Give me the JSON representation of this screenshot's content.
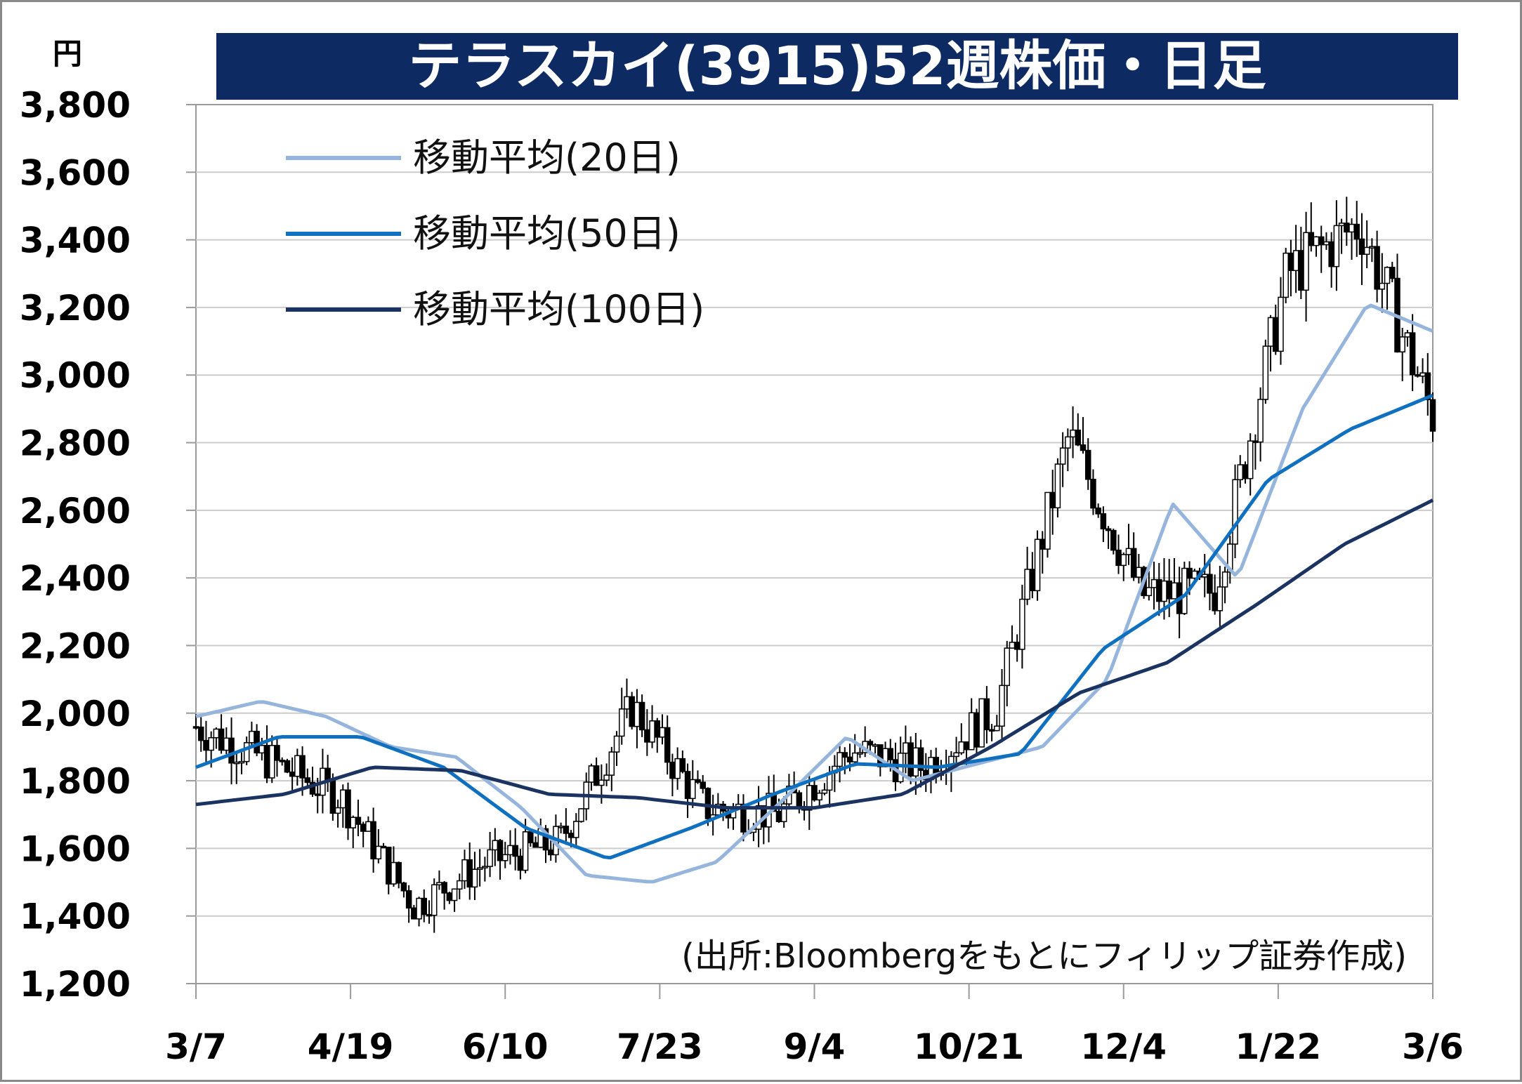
{
  "chart_data": {
    "type": "candlestick",
    "title": "テラスカイ(3915)52週株価・日足",
    "unit": "円",
    "source": "(出所:Bloombergをもとにフィリップ証券作成)",
    "ylim": [
      1200,
      3800
    ],
    "y_ticks": [
      "1,200",
      "1,400",
      "1,600",
      "1,800",
      "2,000",
      "2,200",
      "2,400",
      "2,600",
      "2,800",
      "3,000",
      "3,200",
      "3,400",
      "3,600",
      "3,800"
    ],
    "x_ticks": [
      "3/7",
      "4/19",
      "6/10",
      "7/23",
      "9/4",
      "10/21",
      "12/4",
      "1/22",
      "3/6"
    ],
    "legend_position": "top-left",
    "grid": true,
    "colors": {
      "title_bg": "#0d2a63",
      "ma20": "#96b5dc",
      "ma50": "#0f70c0",
      "ma100": "#1a3360",
      "candle_up": "#ffffff",
      "candle_down": "#000000",
      "grid": "#cccccc"
    },
    "x_anchor_values": [
      1960,
      1860,
      1750,
      1430,
      1560,
      1620,
      2020,
      1720,
      1700,
      1890,
      1840,
      2010,
      2820,
      2350,
      2360,
      3300,
      3450,
      2880
    ],
    "series": [
      {
        "name": "移動平均(20日)",
        "values": [
          1990,
          2035,
          1990,
          1900,
          1870,
          1720,
          1520,
          1500,
          1560,
          1740,
          1930,
          1800,
          1850,
          1900,
          2100,
          2620,
          2400,
          2900,
          3210,
          3130
        ]
      },
      {
        "name": "移動平均(50日)",
        "values": [
          1840,
          1930,
          1930,
          1840,
          1660,
          1570,
          1660,
          1760,
          1850,
          1840,
          1880,
          2190,
          2350,
          2690,
          2840,
          2940
        ]
      },
      {
        "name": "移動平均(100日)",
        "values": [
          1730,
          1760,
          1840,
          1830,
          1760,
          1750,
          1720,
          1720,
          1760,
          1900,
          2060,
          2150,
          2320,
          2500,
          2630
        ]
      }
    ]
  }
}
